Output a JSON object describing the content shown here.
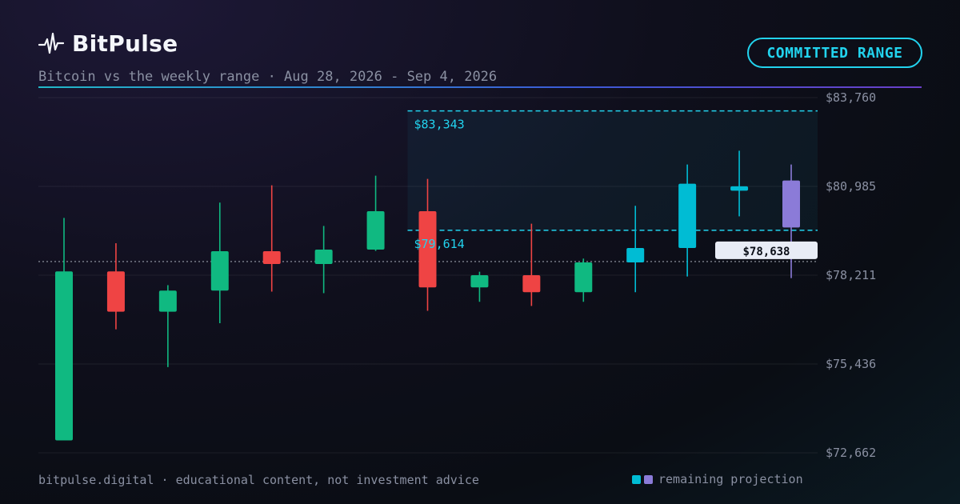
{
  "header": {
    "brand": "BitPulse",
    "subtitle": "Bitcoin vs the weekly range · Aug 28, 2026 - Sep 4, 2026",
    "badge": "COMMITTED RANGE",
    "logo_icon": "pulse-icon"
  },
  "footer": {
    "disclaimer": "bitpulse.digital · educational content, not investment advice",
    "legend_label": "remaining projection"
  },
  "colors": {
    "up": "#10b981",
    "down": "#ef4444",
    "projection": "#00bcd4",
    "projection_last": "#8b7bd8",
    "range": "#22d3ee"
  },
  "chart_data": {
    "type": "candlestick",
    "ylim": [
      72662,
      83760
    ],
    "y_ticks": [
      "$83,760",
      "$80,985",
      "$78,211",
      "$75,436",
      "$72,662"
    ],
    "y_tick_values": [
      83760,
      80985,
      78211,
      75436,
      72662
    ],
    "committed_range": {
      "high": 83343,
      "low": 79614,
      "high_label": "$83,343",
      "low_label": "$79,614"
    },
    "current_price": {
      "value": 78638,
      "label": "$78,638"
    },
    "candles": [
      {
        "open": 73050,
        "high": 80000,
        "low": 73050,
        "close": 78330,
        "kind": "up"
      },
      {
        "open": 78330,
        "high": 79210,
        "low": 76520,
        "close": 77070,
        "kind": "down"
      },
      {
        "open": 77070,
        "high": 77900,
        "low": 75340,
        "close": 77730,
        "kind": "up"
      },
      {
        "open": 77730,
        "high": 80480,
        "low": 76710,
        "close": 78960,
        "kind": "up"
      },
      {
        "open": 78960,
        "high": 81020,
        "low": 77700,
        "close": 78560,
        "kind": "down"
      },
      {
        "open": 78560,
        "high": 79750,
        "low": 77650,
        "close": 79010,
        "kind": "up"
      },
      {
        "open": 79010,
        "high": 81320,
        "low": 78970,
        "close": 80210,
        "kind": "up"
      },
      {
        "open": 80210,
        "high": 81220,
        "low": 77100,
        "close": 77830,
        "kind": "down"
      },
      {
        "open": 77830,
        "high": 78320,
        "low": 77380,
        "close": 78210,
        "kind": "up"
      },
      {
        "open": 78210,
        "high": 79820,
        "low": 77250,
        "close": 77680,
        "kind": "down"
      },
      {
        "open": 77680,
        "high": 78730,
        "low": 77380,
        "close": 78610,
        "kind": "up"
      },
      {
        "open": 78610,
        "high": 80380,
        "low": 77680,
        "close": 79060,
        "kind": "projection"
      },
      {
        "open": 79060,
        "high": 81670,
        "low": 78170,
        "close": 81070,
        "kind": "projection"
      },
      {
        "open": 80990,
        "high": 82100,
        "low": 80050,
        "close": 80850,
        "kind": "projection"
      },
      {
        "open": 79700,
        "high": 81670,
        "low": 78120,
        "close": 81170,
        "kind": "projection_last"
      }
    ]
  }
}
